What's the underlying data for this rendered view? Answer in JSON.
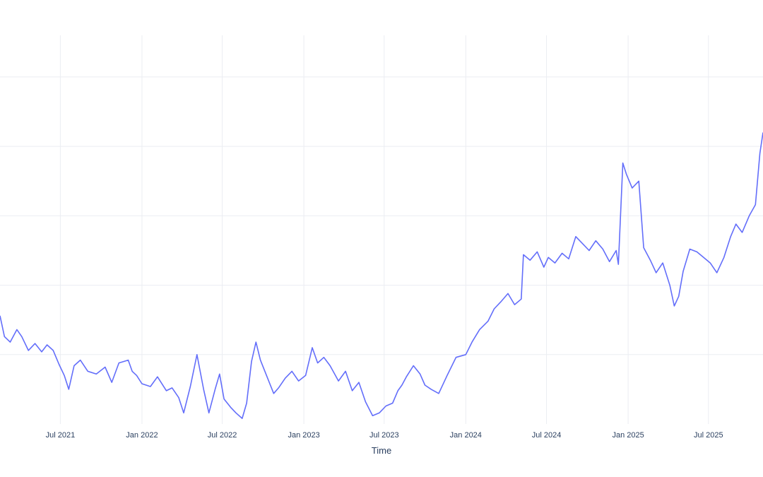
{
  "chart_data": {
    "type": "line",
    "xlabel": "Time",
    "ylabel": "",
    "x_range": [
      "2021-02-15",
      "2025-11-01"
    ],
    "y_range": [
      0,
      2.8
    ],
    "x_ticks": [
      {
        "date": "2021-07-01",
        "label": "Jul 2021"
      },
      {
        "date": "2022-01-01",
        "label": "Jan 2022"
      },
      {
        "date": "2022-07-01",
        "label": "Jul 2022"
      },
      {
        "date": "2023-01-01",
        "label": "Jan 2023"
      },
      {
        "date": "2023-07-01",
        "label": "Jul 2023"
      },
      {
        "date": "2024-01-01",
        "label": "Jan 2024"
      },
      {
        "date": "2024-07-01",
        "label": "Jul 2024"
      },
      {
        "date": "2025-01-01",
        "label": "Jan 2025"
      },
      {
        "date": "2025-07-01",
        "label": "Jul 2025"
      }
    ],
    "y_gridlines": [
      0.5,
      1.0,
      1.5,
      2.0,
      2.5
    ],
    "y_tick_labels_visible": false,
    "grid": true,
    "line_color": "#636efa",
    "series": [
      {
        "points": [
          [
            "2021-02-15",
            0.78
          ],
          [
            "2021-02-25",
            0.63
          ],
          [
            "2021-03-10",
            0.59
          ],
          [
            "2021-03-25",
            0.68
          ],
          [
            "2021-04-05",
            0.63
          ],
          [
            "2021-04-20",
            0.53
          ],
          [
            "2021-05-05",
            0.58
          ],
          [
            "2021-05-20",
            0.52
          ],
          [
            "2021-06-01",
            0.57
          ],
          [
            "2021-06-15",
            0.53
          ],
          [
            "2021-06-28",
            0.43
          ],
          [
            "2021-07-10",
            0.35
          ],
          [
            "2021-07-20",
            0.25
          ],
          [
            "2021-08-01",
            0.42
          ],
          [
            "2021-08-15",
            0.46
          ],
          [
            "2021-09-01",
            0.38
          ],
          [
            "2021-09-20",
            0.36
          ],
          [
            "2021-10-10",
            0.41
          ],
          [
            "2021-10-25",
            0.3
          ],
          [
            "2021-11-10",
            0.44
          ],
          [
            "2021-12-01",
            0.46
          ],
          [
            "2021-12-10",
            0.38
          ],
          [
            "2021-12-20",
            0.35
          ],
          [
            "2022-01-01",
            0.29
          ],
          [
            "2022-01-20",
            0.27
          ],
          [
            "2022-02-05",
            0.34
          ],
          [
            "2022-02-25",
            0.24
          ],
          [
            "2022-03-10",
            0.26
          ],
          [
            "2022-03-25",
            0.19
          ],
          [
            "2022-04-05",
            0.08
          ],
          [
            "2022-04-20",
            0.27
          ],
          [
            "2022-05-05",
            0.5
          ],
          [
            "2022-05-20",
            0.25
          ],
          [
            "2022-06-01",
            0.08
          ],
          [
            "2022-06-15",
            0.25
          ],
          [
            "2022-06-25",
            0.36
          ],
          [
            "2022-07-05",
            0.18
          ],
          [
            "2022-07-20",
            0.12
          ],
          [
            "2022-08-01",
            0.08
          ],
          [
            "2022-08-15",
            0.04
          ],
          [
            "2022-08-25",
            0.15
          ],
          [
            "2022-09-05",
            0.45
          ],
          [
            "2022-09-15",
            0.59
          ],
          [
            "2022-09-25",
            0.46
          ],
          [
            "2022-10-10",
            0.34
          ],
          [
            "2022-10-25",
            0.22
          ],
          [
            "2022-11-05",
            0.26
          ],
          [
            "2022-11-20",
            0.33
          ],
          [
            "2022-12-05",
            0.38
          ],
          [
            "2022-12-20",
            0.31
          ],
          [
            "2023-01-05",
            0.35
          ],
          [
            "2023-01-20",
            0.55
          ],
          [
            "2023-02-01",
            0.44
          ],
          [
            "2023-02-15",
            0.48
          ],
          [
            "2023-03-01",
            0.42
          ],
          [
            "2023-03-20",
            0.31
          ],
          [
            "2023-04-05",
            0.38
          ],
          [
            "2023-04-20",
            0.24
          ],
          [
            "2023-05-05",
            0.3
          ],
          [
            "2023-05-20",
            0.16
          ],
          [
            "2023-06-05",
            0.06
          ],
          [
            "2023-06-20",
            0.08
          ],
          [
            "2023-07-05",
            0.13
          ],
          [
            "2023-07-20",
            0.15
          ],
          [
            "2023-08-01",
            0.24
          ],
          [
            "2023-08-10",
            0.28
          ],
          [
            "2023-08-20",
            0.34
          ],
          [
            "2023-09-05",
            0.42
          ],
          [
            "2023-09-20",
            0.36
          ],
          [
            "2023-10-01",
            0.28
          ],
          [
            "2023-10-15",
            0.25
          ],
          [
            "2023-11-01",
            0.22
          ],
          [
            "2023-11-20",
            0.35
          ],
          [
            "2023-12-10",
            0.48
          ],
          [
            "2024-01-01",
            0.5
          ],
          [
            "2024-01-15",
            0.59
          ],
          [
            "2024-02-01",
            0.68
          ],
          [
            "2024-02-20",
            0.74
          ],
          [
            "2024-03-05",
            0.83
          ],
          [
            "2024-03-20",
            0.88
          ],
          [
            "2024-04-05",
            0.94
          ],
          [
            "2024-04-20",
            0.86
          ],
          [
            "2024-05-05",
            0.9
          ],
          [
            "2024-05-10",
            1.22
          ],
          [
            "2024-05-25",
            1.18
          ],
          [
            "2024-06-10",
            1.24
          ],
          [
            "2024-06-25",
            1.13
          ],
          [
            "2024-07-05",
            1.2
          ],
          [
            "2024-07-20",
            1.16
          ],
          [
            "2024-08-05",
            1.23
          ],
          [
            "2024-08-20",
            1.19
          ],
          [
            "2024-09-05",
            1.35
          ],
          [
            "2024-09-20",
            1.3
          ],
          [
            "2024-10-05",
            1.25
          ],
          [
            "2024-10-20",
            1.32
          ],
          [
            "2024-11-05",
            1.26
          ],
          [
            "2024-11-20",
            1.17
          ],
          [
            "2024-12-05",
            1.25
          ],
          [
            "2024-12-10",
            1.15
          ],
          [
            "2024-12-20",
            1.88
          ],
          [
            "2024-12-28",
            1.8
          ],
          [
            "2025-01-10",
            1.7
          ],
          [
            "2025-01-25",
            1.75
          ],
          [
            "2025-02-05",
            1.27
          ],
          [
            "2025-02-20",
            1.18
          ],
          [
            "2025-03-05",
            1.09
          ],
          [
            "2025-03-20",
            1.16
          ],
          [
            "2025-04-05",
            1.0
          ],
          [
            "2025-04-15",
            0.85
          ],
          [
            "2025-04-25",
            0.92
          ],
          [
            "2025-05-05",
            1.1
          ],
          [
            "2025-05-20",
            1.26
          ],
          [
            "2025-06-05",
            1.24
          ],
          [
            "2025-06-20",
            1.2
          ],
          [
            "2025-07-05",
            1.16
          ],
          [
            "2025-07-20",
            1.09
          ],
          [
            "2025-08-05",
            1.2
          ],
          [
            "2025-08-20",
            1.35
          ],
          [
            "2025-09-01",
            1.44
          ],
          [
            "2025-09-15",
            1.38
          ],
          [
            "2025-10-01",
            1.5
          ],
          [
            "2025-10-15",
            1.58
          ],
          [
            "2025-10-25",
            1.95
          ],
          [
            "2025-11-01",
            2.1
          ]
        ]
      }
    ]
  }
}
